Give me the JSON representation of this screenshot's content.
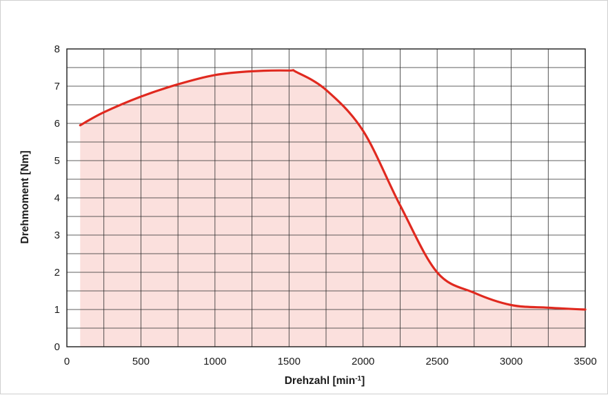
{
  "chart_data": {
    "type": "area",
    "title": "",
    "xlabel": "Drehzahl [min",
    "xlabel_sup": "-1",
    "xlabel_end": "]",
    "ylabel": "Drehmoment [Nm]",
    "xlim": [
      0,
      3500
    ],
    "ylim": [
      0,
      8
    ],
    "x_ticks": [
      "0",
      "500",
      "1000",
      "1500",
      "2000",
      "2500",
      "3000",
      "3500"
    ],
    "y_ticks": [
      "0",
      "1",
      "2",
      "3",
      "4",
      "5",
      "6",
      "7",
      "8"
    ],
    "grid": true,
    "x_minor_step": 250,
    "y_minor_step": 0.5,
    "series": [
      {
        "color": "#e0291f",
        "fill_color": "#fbe0dd",
        "x": [
          90,
          250,
          500,
          750,
          1000,
          1250,
          1500,
          1550,
          1750,
          2000,
          2250,
          2500,
          2750,
          3000,
          3250,
          3500
        ],
        "y": [
          5.95,
          6.3,
          6.72,
          7.05,
          7.3,
          7.4,
          7.42,
          7.38,
          6.9,
          5.8,
          3.8,
          2.0,
          1.45,
          1.12,
          1.05,
          1.0
        ]
      }
    ]
  }
}
